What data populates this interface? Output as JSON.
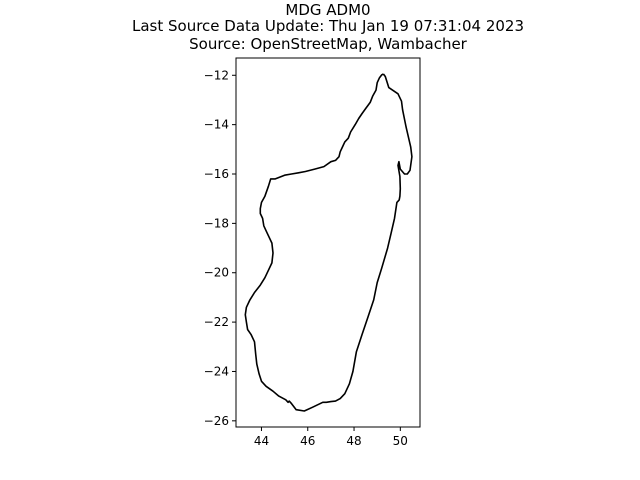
{
  "title": {
    "line1": "MDG ADM0",
    "line2": "Last Source Data Update: Thu Jan 19 07:31:04 2023",
    "line3": "Source: OpenStreetMap, Wambacher"
  },
  "chart_data": {
    "type": "line",
    "title": "MDG ADM0",
    "xlabel": "",
    "ylabel": "",
    "xlim": [
      42.9,
      50.85
    ],
    "ylim": [
      -26.25,
      -11.3
    ],
    "xticks": [
      44,
      46,
      48,
      50
    ],
    "yticks": [
      -12,
      -14,
      -16,
      -18,
      -20,
      -22,
      -24,
      -26
    ],
    "grid": false,
    "legend": "none",
    "colors": {
      "outline": "#000000",
      "axes": "#000000",
      "background": "#ffffff"
    },
    "series": [
      {
        "name": "",
        "x": [
          49.27,
          49.35,
          49.5,
          49.9,
          50.05,
          50.1,
          50.25,
          50.45,
          50.5,
          50.42,
          50.3,
          50.18,
          50.0,
          49.94,
          49.9,
          49.98,
          50.0,
          49.98,
          49.95,
          49.85,
          49.75,
          49.6,
          49.45,
          49.2,
          49.0,
          48.85,
          48.6,
          48.35,
          48.1,
          47.95,
          47.8,
          47.6,
          47.4,
          47.2,
          47.0,
          46.8,
          46.65,
          46.2,
          45.85,
          45.5,
          45.3,
          45.2,
          45.15,
          45.05,
          44.75,
          44.5,
          44.2,
          44.0,
          43.9,
          43.8,
          43.75,
          43.7,
          43.55,
          43.4,
          43.35,
          43.3,
          43.35,
          43.5,
          43.7,
          43.95,
          44.15,
          44.3,
          44.45,
          44.5,
          44.45,
          44.3,
          44.2,
          44.1,
          44.05,
          43.95,
          43.95,
          44.0,
          44.15,
          44.3,
          44.4,
          44.6,
          45.0,
          45.3,
          45.6,
          45.9,
          46.3,
          46.7,
          47.0,
          47.2,
          47.35,
          47.4,
          47.5,
          47.6,
          47.75,
          47.85,
          48.05,
          48.2,
          48.35,
          48.5,
          48.7,
          48.8,
          48.95,
          49.0,
          49.1,
          49.2,
          49.27
        ],
        "y": [
          -11.95,
          -12.05,
          -12.5,
          -12.75,
          -13.05,
          -13.4,
          -14.1,
          -14.9,
          -15.3,
          -15.85,
          -16.0,
          -16.0,
          -15.8,
          -15.5,
          -15.65,
          -16.1,
          -16.6,
          -16.9,
          -17.05,
          -17.15,
          -17.8,
          -18.4,
          -19.0,
          -19.8,
          -20.4,
          -21.1,
          -21.8,
          -22.5,
          -23.2,
          -24.0,
          -24.5,
          -24.9,
          -25.1,
          -25.2,
          -25.22,
          -25.25,
          -25.25,
          -25.45,
          -25.6,
          -25.55,
          -25.3,
          -25.2,
          -25.25,
          -25.15,
          -25.0,
          -24.8,
          -24.6,
          -24.4,
          -24.1,
          -23.7,
          -23.3,
          -22.8,
          -22.5,
          -22.3,
          -22.0,
          -21.7,
          -21.4,
          -21.1,
          -20.8,
          -20.5,
          -20.2,
          -19.9,
          -19.6,
          -19.2,
          -18.8,
          -18.5,
          -18.3,
          -18.1,
          -17.8,
          -17.6,
          -17.4,
          -17.15,
          -16.9,
          -16.5,
          -16.2,
          -16.2,
          -16.05,
          -16.0,
          -15.95,
          -15.9,
          -15.8,
          -15.7,
          -15.5,
          -15.45,
          -15.3,
          -15.1,
          -14.9,
          -14.7,
          -14.55,
          -14.3,
          -14.0,
          -13.75,
          -13.55,
          -13.35,
          -13.1,
          -12.85,
          -12.6,
          -12.3,
          -12.1,
          -11.98,
          -11.95
        ]
      }
    ]
  }
}
